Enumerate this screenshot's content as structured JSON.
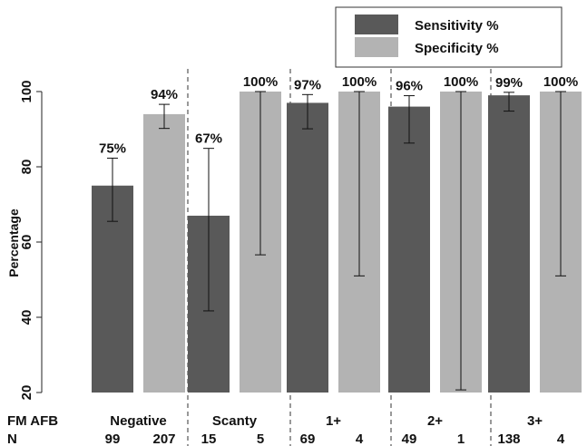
{
  "chart_data": {
    "type": "bar",
    "ylabel": "Percentage",
    "ylim": [
      20,
      100
    ],
    "yticks": [
      20,
      40,
      60,
      80,
      100
    ],
    "row_labels": {
      "group": "FM AFB",
      "n": "N"
    },
    "groups": [
      {
        "label": "Negative",
        "n_sens": "99",
        "n_spec": "207"
      },
      {
        "label": "Scanty",
        "n_sens": "15",
        "n_spec": "5"
      },
      {
        "label": "1+",
        "n_sens": "69",
        "n_spec": "4"
      },
      {
        "label": "2+",
        "n_sens": "49",
        "n_spec": "1"
      },
      {
        "label": "3+",
        "n_sens": "138",
        "n_spec": "4"
      }
    ],
    "series": [
      {
        "name": "Sensitivity %",
        "color": "#595959",
        "values": [
          75,
          67,
          97,
          96,
          99
        ],
        "labels": [
          "75%",
          "67%",
          "97%",
          "96%",
          "99%"
        ],
        "ci_low": [
          65.5,
          41.7,
          90.1,
          86.3,
          94.8
        ],
        "ci_high": [
          82.3,
          84.9,
          99.2,
          98.9,
          99.8
        ]
      },
      {
        "name": "Specificity %",
        "color": "#b3b3b3",
        "values": [
          94,
          100,
          100,
          100,
          100
        ],
        "labels": [
          "94%",
          "100%",
          "100%",
          "100%",
          "100%"
        ],
        "ci_low": [
          90.2,
          56.6,
          51.0,
          20.7,
          51.0
        ],
        "ci_high": [
          96.6,
          100,
          100,
          100,
          100
        ]
      }
    ],
    "legend_position": "top-center"
  }
}
